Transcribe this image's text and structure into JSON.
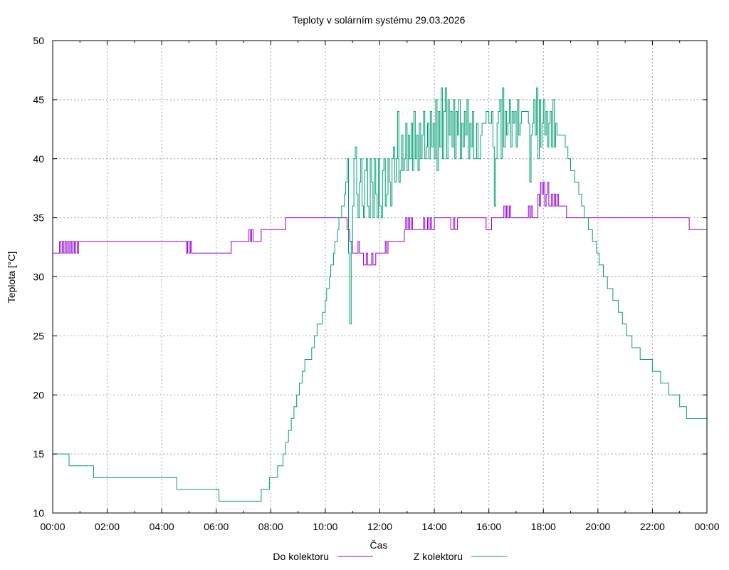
{
  "chart_data": {
    "type": "line",
    "title": "Teploty v solárním systému 29.03.2026",
    "xlabel": "Čas",
    "ylabel": "Teplota [°C]",
    "xlim": [
      0,
      24
    ],
    "ylim": [
      10,
      50
    ],
    "xticks": [
      0,
      2,
      4,
      6,
      8,
      10,
      12,
      14,
      16,
      18,
      20,
      22,
      24
    ],
    "xtick_labels": [
      "00:00",
      "02:00",
      "04:00",
      "06:00",
      "08:00",
      "10:00",
      "12:00",
      "14:00",
      "16:00",
      "18:00",
      "20:00",
      "22:00",
      "00:00"
    ],
    "yticks": [
      10,
      15,
      20,
      25,
      30,
      35,
      40,
      45,
      50
    ],
    "ytick_labels": [
      "10",
      "15",
      "20",
      "25",
      "30",
      "35",
      "40",
      "45",
      "50"
    ],
    "grid": true,
    "legend_position": "bottom",
    "series": [
      {
        "name": "Do kolektoru",
        "color": "#9400d3",
        "step": true,
        "points": [
          [
            0.0,
            32
          ],
          [
            0.25,
            33
          ],
          [
            0.3,
            32
          ],
          [
            0.35,
            33
          ],
          [
            0.4,
            32
          ],
          [
            0.45,
            33
          ],
          [
            0.5,
            32
          ],
          [
            0.55,
            33
          ],
          [
            0.6,
            32
          ],
          [
            0.65,
            33
          ],
          [
            0.7,
            32
          ],
          [
            0.75,
            33
          ],
          [
            0.8,
            32
          ],
          [
            0.85,
            33
          ],
          [
            0.9,
            32
          ],
          [
            0.95,
            33
          ],
          [
            4.9,
            32
          ],
          [
            4.95,
            33
          ],
          [
            5.0,
            32
          ],
          [
            5.05,
            33
          ],
          [
            5.1,
            32
          ],
          [
            6.55,
            33
          ],
          [
            7.2,
            34
          ],
          [
            7.25,
            33
          ],
          [
            7.3,
            34
          ],
          [
            7.35,
            33
          ],
          [
            7.65,
            34
          ],
          [
            8.55,
            35
          ],
          [
            10.8,
            34
          ],
          [
            10.9,
            33
          ],
          [
            11.0,
            32
          ],
          [
            11.2,
            33
          ],
          [
            11.25,
            32
          ],
          [
            11.4,
            31
          ],
          [
            11.5,
            32
          ],
          [
            11.55,
            31
          ],
          [
            11.7,
            32
          ],
          [
            11.75,
            31
          ],
          [
            11.85,
            32
          ],
          [
            12.2,
            33
          ],
          [
            12.25,
            32
          ],
          [
            12.3,
            33
          ],
          [
            12.9,
            34
          ],
          [
            12.95,
            35
          ],
          [
            13.0,
            34
          ],
          [
            13.05,
            35
          ],
          [
            13.1,
            34
          ],
          [
            13.15,
            35
          ],
          [
            13.2,
            34
          ],
          [
            13.6,
            35
          ],
          [
            13.65,
            34
          ],
          [
            13.75,
            35
          ],
          [
            13.8,
            34
          ],
          [
            13.85,
            35
          ],
          [
            13.9,
            34
          ],
          [
            14.0,
            35
          ],
          [
            14.6,
            34
          ],
          [
            14.7,
            35
          ],
          [
            14.75,
            34
          ],
          [
            14.85,
            35
          ],
          [
            15.9,
            34
          ],
          [
            16.1,
            35
          ],
          [
            16.55,
            36
          ],
          [
            16.6,
            35
          ],
          [
            16.65,
            36
          ],
          [
            16.7,
            35
          ],
          [
            16.75,
            36
          ],
          [
            16.8,
            35
          ],
          [
            17.45,
            36
          ],
          [
            17.5,
            35
          ],
          [
            17.55,
            36
          ],
          [
            17.6,
            35
          ],
          [
            17.8,
            37
          ],
          [
            17.85,
            36
          ],
          [
            17.9,
            38
          ],
          [
            17.95,
            37
          ],
          [
            18.0,
            38
          ],
          [
            18.05,
            36
          ],
          [
            18.1,
            37
          ],
          [
            18.15,
            38
          ],
          [
            18.2,
            36
          ],
          [
            18.3,
            37
          ],
          [
            18.35,
            36
          ],
          [
            18.4,
            37
          ],
          [
            18.45,
            36
          ],
          [
            18.5,
            37
          ],
          [
            18.55,
            36
          ],
          [
            18.85,
            35
          ],
          [
            23.35,
            34
          ],
          [
            24.0,
            34
          ]
        ]
      },
      {
        "name": "Z kolektoru",
        "color": "#009e73",
        "step": true,
        "points": [
          [
            0.0,
            15
          ],
          [
            0.6,
            14
          ],
          [
            1.5,
            13
          ],
          [
            4.55,
            12
          ],
          [
            6.1,
            11
          ],
          [
            7.65,
            12
          ],
          [
            7.95,
            13
          ],
          [
            8.25,
            14
          ],
          [
            8.45,
            15
          ],
          [
            8.55,
            16
          ],
          [
            8.65,
            17
          ],
          [
            8.75,
            18
          ],
          [
            8.85,
            19
          ],
          [
            8.95,
            20
          ],
          [
            9.05,
            21
          ],
          [
            9.15,
            22
          ],
          [
            9.25,
            23
          ],
          [
            9.5,
            24
          ],
          [
            9.6,
            25
          ],
          [
            9.7,
            26
          ],
          [
            9.9,
            27
          ],
          [
            10.0,
            28
          ],
          [
            10.05,
            29
          ],
          [
            10.15,
            30
          ],
          [
            10.2,
            31
          ],
          [
            10.3,
            32
          ],
          [
            10.35,
            33
          ],
          [
            10.45,
            34
          ],
          [
            10.5,
            35
          ],
          [
            10.6,
            36
          ],
          [
            10.7,
            37
          ],
          [
            10.75,
            38
          ],
          [
            10.8,
            40
          ],
          [
            10.85,
            32
          ],
          [
            10.9,
            26
          ],
          [
            10.95,
            33
          ],
          [
            11.0,
            36
          ],
          [
            11.05,
            40
          ],
          [
            11.1,
            41
          ],
          [
            11.15,
            37
          ],
          [
            11.2,
            35
          ],
          [
            11.25,
            38
          ],
          [
            11.3,
            40
          ],
          [
            11.35,
            36
          ],
          [
            11.4,
            35
          ],
          [
            11.45,
            39
          ],
          [
            11.5,
            40
          ],
          [
            11.55,
            36
          ],
          [
            11.6,
            35
          ],
          [
            11.65,
            40
          ],
          [
            11.7,
            38
          ],
          [
            11.75,
            35
          ],
          [
            11.8,
            40
          ],
          [
            11.85,
            37
          ],
          [
            11.9,
            35
          ],
          [
            11.95,
            40
          ],
          [
            12.0,
            36
          ],
          [
            12.05,
            35
          ],
          [
            12.1,
            39
          ],
          [
            12.15,
            40
          ],
          [
            12.2,
            36
          ],
          [
            12.25,
            37
          ],
          [
            12.3,
            40
          ],
          [
            12.35,
            38
          ],
          [
            12.4,
            36
          ],
          [
            12.45,
            40
          ],
          [
            12.5,
            41
          ],
          [
            12.55,
            38
          ],
          [
            12.6,
            40
          ],
          [
            12.65,
            44
          ],
          [
            12.7,
            38
          ],
          [
            12.75,
            39
          ],
          [
            12.8,
            42
          ],
          [
            12.85,
            39
          ],
          [
            12.9,
            40
          ],
          [
            12.95,
            43
          ],
          [
            13.0,
            39
          ],
          [
            13.05,
            42
          ],
          [
            13.1,
            40
          ],
          [
            13.15,
            43
          ],
          [
            13.2,
            39
          ],
          [
            13.25,
            44
          ],
          [
            13.3,
            40
          ],
          [
            13.35,
            42
          ],
          [
            13.4,
            39
          ],
          [
            13.45,
            43
          ],
          [
            13.5,
            40
          ],
          [
            13.55,
            42
          ],
          [
            13.6,
            44
          ],
          [
            13.65,
            40
          ],
          [
            13.7,
            41
          ],
          [
            13.75,
            43
          ],
          [
            13.8,
            40
          ],
          [
            13.85,
            44
          ],
          [
            13.9,
            41
          ],
          [
            13.95,
            43
          ],
          [
            14.0,
            40
          ],
          [
            14.05,
            45
          ],
          [
            14.1,
            39
          ],
          [
            14.15,
            44
          ],
          [
            14.2,
            41
          ],
          [
            14.25,
            46
          ],
          [
            14.3,
            40
          ],
          [
            14.35,
            44
          ],
          [
            14.4,
            46
          ],
          [
            14.45,
            40
          ],
          [
            14.5,
            45
          ],
          [
            14.55,
            42
          ],
          [
            14.6,
            44
          ],
          [
            14.65,
            41
          ],
          [
            14.7,
            45
          ],
          [
            14.75,
            40
          ],
          [
            14.8,
            44
          ],
          [
            14.85,
            42
          ],
          [
            14.9,
            45
          ],
          [
            14.95,
            40
          ],
          [
            15.0,
            43
          ],
          [
            15.05,
            41
          ],
          [
            15.1,
            44
          ],
          [
            15.15,
            42
          ],
          [
            15.2,
            45
          ],
          [
            15.25,
            40
          ],
          [
            15.3,
            43
          ],
          [
            15.35,
            41
          ],
          [
            15.4,
            44
          ],
          [
            15.45,
            40
          ],
          [
            15.55,
            43
          ],
          [
            15.6,
            40
          ],
          [
            15.7,
            42
          ],
          [
            15.75,
            43
          ],
          [
            15.9,
            44
          ],
          [
            16.0,
            43
          ],
          [
            16.1,
            44
          ],
          [
            16.15,
            41
          ],
          [
            16.2,
            36
          ],
          [
            16.25,
            40
          ],
          [
            16.3,
            43
          ],
          [
            16.35,
            44
          ],
          [
            16.4,
            45
          ],
          [
            16.45,
            40
          ],
          [
            16.5,
            46
          ],
          [
            16.55,
            41
          ],
          [
            16.6,
            44
          ],
          [
            16.65,
            42
          ],
          [
            16.7,
            43
          ],
          [
            16.75,
            45
          ],
          [
            16.8,
            41
          ],
          [
            16.85,
            44
          ],
          [
            16.9,
            43
          ],
          [
            16.95,
            44
          ],
          [
            17.0,
            41
          ],
          [
            17.05,
            45
          ],
          [
            17.1,
            42
          ],
          [
            17.15,
            43
          ],
          [
            17.2,
            44
          ],
          [
            17.3,
            44
          ],
          [
            17.45,
            43
          ],
          [
            17.5,
            38
          ],
          [
            17.55,
            42
          ],
          [
            17.6,
            43
          ],
          [
            17.65,
            45
          ],
          [
            17.7,
            42
          ],
          [
            17.75,
            46
          ],
          [
            17.8,
            40
          ],
          [
            17.85,
            45
          ],
          [
            17.9,
            41
          ],
          [
            17.95,
            43
          ],
          [
            18.0,
            45
          ],
          [
            18.05,
            42
          ],
          [
            18.1,
            44
          ],
          [
            18.15,
            41
          ],
          [
            18.2,
            43
          ],
          [
            18.25,
            44
          ],
          [
            18.3,
            41
          ],
          [
            18.35,
            45
          ],
          [
            18.4,
            41
          ],
          [
            18.45,
            43
          ],
          [
            18.5,
            42
          ],
          [
            18.8,
            41
          ],
          [
            18.9,
            40
          ],
          [
            19.0,
            39
          ],
          [
            19.15,
            38
          ],
          [
            19.3,
            37
          ],
          [
            19.4,
            36
          ],
          [
            19.5,
            35
          ],
          [
            19.65,
            34
          ],
          [
            19.8,
            33
          ],
          [
            19.95,
            32
          ],
          [
            20.05,
            31
          ],
          [
            20.2,
            30
          ],
          [
            20.35,
            29
          ],
          [
            20.55,
            28
          ],
          [
            20.75,
            27
          ],
          [
            20.9,
            26
          ],
          [
            21.05,
            25
          ],
          [
            21.25,
            24
          ],
          [
            21.55,
            23
          ],
          [
            22.0,
            22
          ],
          [
            22.3,
            21
          ],
          [
            22.6,
            20
          ],
          [
            23.0,
            19
          ],
          [
            23.25,
            18
          ],
          [
            23.55,
            18
          ],
          [
            24.0,
            18
          ]
        ]
      }
    ]
  }
}
